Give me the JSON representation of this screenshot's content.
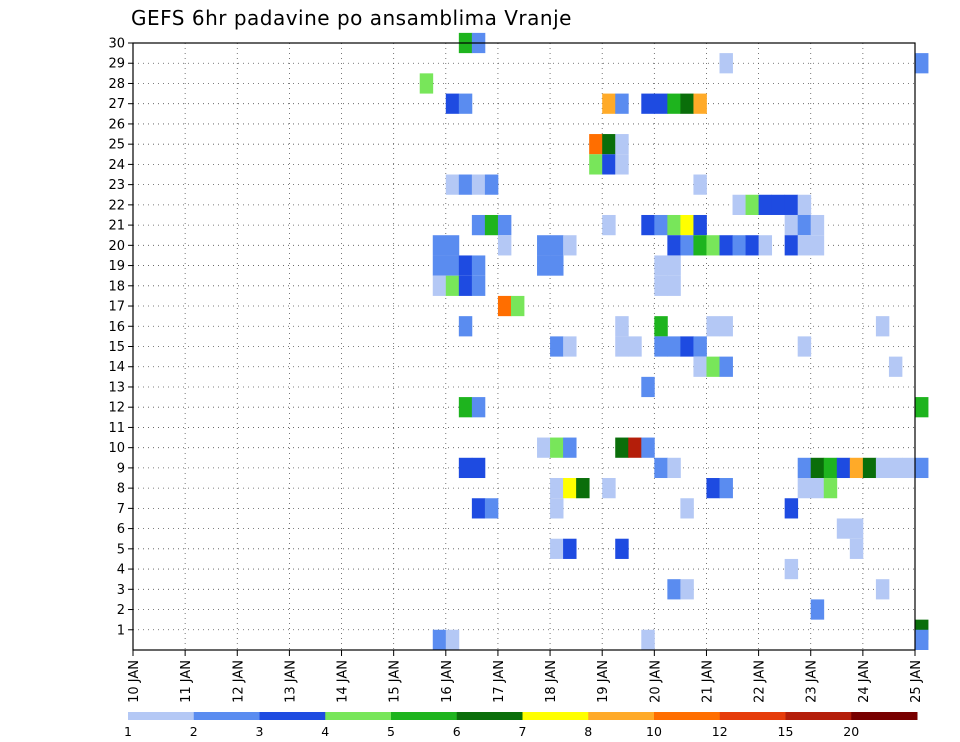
{
  "chart_data": {
    "type": "heatmap",
    "title": "GEFS 6hr padavine po ansamblima Vranje",
    "x_ticks": [
      "10 JAN",
      "11 JAN",
      "12 JAN",
      "13 JAN",
      "14 JAN",
      "15 JAN",
      "16 JAN",
      "17 JAN",
      "18 JAN",
      "19 JAN",
      "20 JAN",
      "21 JAN",
      "22 JAN",
      "23 JAN",
      "24 JAN",
      "25 JAN"
    ],
    "y_ticks": [
      "1",
      "2",
      "3",
      "4",
      "5",
      "6",
      "7",
      "8",
      "9",
      "10",
      "11",
      "12",
      "13",
      "14",
      "15",
      "16",
      "17",
      "18",
      "19",
      "20",
      "21",
      "22",
      "23",
      "24",
      "25",
      "26",
      "27",
      "28",
      "29",
      "30"
    ],
    "xlim_days": [
      10,
      25
    ],
    "ylim": [
      0,
      30
    ],
    "step_hours": 6,
    "grid": true,
    "legend": {
      "labels": [
        "1",
        "2",
        "3",
        "4",
        "5",
        "6",
        "7",
        "8",
        "10",
        "12",
        "15",
        "20"
      ],
      "colors": [
        "#b4c8f5",
        "#5a8cf0",
        "#1e4be1",
        "#78e65a",
        "#1eb41e",
        "#0a6e0a",
        "#ffff00",
        "#ffaa28",
        "#ff6e00",
        "#e63c0a",
        "#b41e0a",
        "#780000"
      ]
    },
    "cells": [
      {
        "member": 30,
        "day": 16.25,
        "level": 5
      },
      {
        "member": 30,
        "day": 16.5,
        "level": 2
      },
      {
        "member": 29,
        "day": 21.25,
        "level": 1
      },
      {
        "member": 29,
        "day": 25.0,
        "level": 2
      },
      {
        "member": 28,
        "day": 15.5,
        "level": 4
      },
      {
        "member": 27,
        "day": 16.0,
        "level": 3
      },
      {
        "member": 27,
        "day": 16.25,
        "level": 2
      },
      {
        "member": 27,
        "day": 19.0,
        "level": 8
      },
      {
        "member": 27,
        "day": 19.25,
        "level": 2
      },
      {
        "member": 27,
        "day": 19.75,
        "level": 3
      },
      {
        "member": 27,
        "day": 20.0,
        "level": 3
      },
      {
        "member": 27,
        "day": 20.25,
        "level": 5
      },
      {
        "member": 27,
        "day": 20.5,
        "level": 6
      },
      {
        "member": 27,
        "day": 20.75,
        "level": 8
      },
      {
        "member": 25,
        "day": 18.75,
        "level": 9
      },
      {
        "member": 25,
        "day": 19.0,
        "level": 6
      },
      {
        "member": 25,
        "day": 19.25,
        "level": 1
      },
      {
        "member": 24,
        "day": 18.75,
        "level": 4
      },
      {
        "member": 24,
        "day": 19.0,
        "level": 3
      },
      {
        "member": 24,
        "day": 19.25,
        "level": 1
      },
      {
        "member": 23,
        "day": 16.0,
        "level": 1
      },
      {
        "member": 23,
        "day": 16.25,
        "level": 2
      },
      {
        "member": 23,
        "day": 16.5,
        "level": 1
      },
      {
        "member": 23,
        "day": 16.75,
        "level": 2
      },
      {
        "member": 23,
        "day": 20.75,
        "level": 1
      },
      {
        "member": 22,
        "day": 21.5,
        "level": 1
      },
      {
        "member": 22,
        "day": 21.75,
        "level": 4
      },
      {
        "member": 22,
        "day": 22.0,
        "level": 3
      },
      {
        "member": 22,
        "day": 22.25,
        "level": 3
      },
      {
        "member": 22,
        "day": 22.5,
        "level": 3
      },
      {
        "member": 22,
        "day": 22.75,
        "level": 1
      },
      {
        "member": 21,
        "day": 16.5,
        "level": 2
      },
      {
        "member": 21,
        "day": 16.75,
        "level": 5
      },
      {
        "member": 21,
        "day": 17.0,
        "level": 2
      },
      {
        "member": 21,
        "day": 19.0,
        "level": 1
      },
      {
        "member": 21,
        "day": 19.75,
        "level": 3
      },
      {
        "member": 21,
        "day": 20.0,
        "level": 2
      },
      {
        "member": 21,
        "day": 20.25,
        "level": 4
      },
      {
        "member": 21,
        "day": 20.5,
        "level": 7
      },
      {
        "member": 21,
        "day": 20.75,
        "level": 3
      },
      {
        "member": 21,
        "day": 22.5,
        "level": 1
      },
      {
        "member": 21,
        "day": 22.75,
        "level": 2
      },
      {
        "member": 21,
        "day": 23.0,
        "level": 1
      },
      {
        "member": 20,
        "day": 15.75,
        "level": 2
      },
      {
        "member": 20,
        "day": 16.0,
        "level": 2
      },
      {
        "member": 20,
        "day": 17.0,
        "level": 1
      },
      {
        "member": 20,
        "day": 17.75,
        "level": 2
      },
      {
        "member": 20,
        "day": 18.0,
        "level": 2
      },
      {
        "member": 20,
        "day": 18.25,
        "level": 1
      },
      {
        "member": 20,
        "day": 20.25,
        "level": 3
      },
      {
        "member": 20,
        "day": 20.5,
        "level": 2
      },
      {
        "member": 20,
        "day": 20.75,
        "level": 5
      },
      {
        "member": 20,
        "day": 21.0,
        "level": 4
      },
      {
        "member": 20,
        "day": 21.25,
        "level": 3
      },
      {
        "member": 20,
        "day": 21.5,
        "level": 2
      },
      {
        "member": 20,
        "day": 21.75,
        "level": 3
      },
      {
        "member": 20,
        "day": 22.0,
        "level": 1
      },
      {
        "member": 20,
        "day": 22.5,
        "level": 3
      },
      {
        "member": 20,
        "day": 22.75,
        "level": 1
      },
      {
        "member": 20,
        "day": 23.0,
        "level": 1
      },
      {
        "member": 19,
        "day": 15.75,
        "level": 2
      },
      {
        "member": 19,
        "day": 16.0,
        "level": 2
      },
      {
        "member": 19,
        "day": 16.25,
        "level": 3
      },
      {
        "member": 19,
        "day": 16.5,
        "level": 2
      },
      {
        "member": 19,
        "day": 17.75,
        "level": 2
      },
      {
        "member": 19,
        "day": 18.0,
        "level": 2
      },
      {
        "member": 19,
        "day": 20.0,
        "level": 1
      },
      {
        "member": 19,
        "day": 20.25,
        "level": 1
      },
      {
        "member": 18,
        "day": 15.75,
        "level": 1
      },
      {
        "member": 18,
        "day": 16.0,
        "level": 4
      },
      {
        "member": 18,
        "day": 16.25,
        "level": 3
      },
      {
        "member": 18,
        "day": 16.5,
        "level": 2
      },
      {
        "member": 18,
        "day": 20.0,
        "level": 1
      },
      {
        "member": 18,
        "day": 20.25,
        "level": 1
      },
      {
        "member": 17,
        "day": 17.0,
        "level": 9
      },
      {
        "member": 17,
        "day": 17.25,
        "level": 4
      },
      {
        "member": 16,
        "day": 16.25,
        "level": 2
      },
      {
        "member": 16,
        "day": 19.25,
        "level": 1
      },
      {
        "member": 16,
        "day": 20.0,
        "level": 5
      },
      {
        "member": 16,
        "day": 21.0,
        "level": 1
      },
      {
        "member": 16,
        "day": 21.25,
        "level": 1
      },
      {
        "member": 16,
        "day": 24.25,
        "level": 1
      },
      {
        "member": 15,
        "day": 18.0,
        "level": 2
      },
      {
        "member": 15,
        "day": 18.25,
        "level": 1
      },
      {
        "member": 15,
        "day": 19.25,
        "level": 1
      },
      {
        "member": 15,
        "day": 19.5,
        "level": 1
      },
      {
        "member": 15,
        "day": 20.0,
        "level": 2
      },
      {
        "member": 15,
        "day": 20.25,
        "level": 2
      },
      {
        "member": 15,
        "day": 20.5,
        "level": 3
      },
      {
        "member": 15,
        "day": 20.75,
        "level": 2
      },
      {
        "member": 15,
        "day": 22.75,
        "level": 1
      },
      {
        "member": 14,
        "day": 20.75,
        "level": 1
      },
      {
        "member": 14,
        "day": 21.0,
        "level": 4
      },
      {
        "member": 14,
        "day": 21.25,
        "level": 2
      },
      {
        "member": 14,
        "day": 24.5,
        "level": 1
      },
      {
        "member": 13,
        "day": 19.75,
        "level": 2
      },
      {
        "member": 12,
        "day": 16.25,
        "level": 5
      },
      {
        "member": 12,
        "day": 16.5,
        "level": 2
      },
      {
        "member": 12,
        "day": 25.0,
        "level": 5
      },
      {
        "member": 10,
        "day": 17.75,
        "level": 1
      },
      {
        "member": 10,
        "day": 18.0,
        "level": 4
      },
      {
        "member": 10,
        "day": 18.25,
        "level": 2
      },
      {
        "member": 10,
        "day": 19.25,
        "level": 6
      },
      {
        "member": 10,
        "day": 19.5,
        "level": 11
      },
      {
        "member": 10,
        "day": 19.75,
        "level": 2
      },
      {
        "member": 9,
        "day": 16.25,
        "level": 3
      },
      {
        "member": 9,
        "day": 16.5,
        "level": 3
      },
      {
        "member": 9,
        "day": 20.0,
        "level": 2
      },
      {
        "member": 9,
        "day": 20.25,
        "level": 1
      },
      {
        "member": 9,
        "day": 22.75,
        "level": 2
      },
      {
        "member": 9,
        "day": 23.0,
        "level": 6
      },
      {
        "member": 9,
        "day": 23.25,
        "level": 5
      },
      {
        "member": 9,
        "day": 23.5,
        "level": 3
      },
      {
        "member": 9,
        "day": 23.75,
        "level": 8
      },
      {
        "member": 9,
        "day": 24.0,
        "level": 6
      },
      {
        "member": 9,
        "day": 24.25,
        "level": 1
      },
      {
        "member": 9,
        "day": 24.5,
        "level": 1
      },
      {
        "member": 9,
        "day": 24.75,
        "level": 1
      },
      {
        "member": 9,
        "day": 25.0,
        "level": 2
      },
      {
        "member": 8,
        "day": 18.0,
        "level": 1
      },
      {
        "member": 8,
        "day": 18.25,
        "level": 7
      },
      {
        "member": 8,
        "day": 18.5,
        "level": 6
      },
      {
        "member": 8,
        "day": 19.0,
        "level": 1
      },
      {
        "member": 8,
        "day": 21.0,
        "level": 3
      },
      {
        "member": 8,
        "day": 21.25,
        "level": 2
      },
      {
        "member": 8,
        "day": 22.75,
        "level": 1
      },
      {
        "member": 8,
        "day": 23.0,
        "level": 1
      },
      {
        "member": 8,
        "day": 23.25,
        "level": 4
      },
      {
        "member": 7,
        "day": 16.5,
        "level": 3
      },
      {
        "member": 7,
        "day": 16.75,
        "level": 2
      },
      {
        "member": 7,
        "day": 18.0,
        "level": 1
      },
      {
        "member": 7,
        "day": 20.5,
        "level": 1
      },
      {
        "member": 7,
        "day": 22.5,
        "level": 3
      },
      {
        "member": 6,
        "day": 23.5,
        "level": 1
      },
      {
        "member": 6,
        "day": 23.75,
        "level": 1
      },
      {
        "member": 5,
        "day": 18.0,
        "level": 1
      },
      {
        "member": 5,
        "day": 18.25,
        "level": 3
      },
      {
        "member": 5,
        "day": 19.25,
        "level": 3
      },
      {
        "member": 5,
        "day": 23.75,
        "level": 1
      },
      {
        "member": 4,
        "day": 22.5,
        "level": 1
      },
      {
        "member": 3,
        "day": 20.25,
        "level": 2
      },
      {
        "member": 3,
        "day": 20.5,
        "level": 1
      },
      {
        "member": 3,
        "day": 24.25,
        "level": 1
      },
      {
        "member": 2,
        "day": 23.0,
        "level": 2
      },
      {
        "member": 1,
        "day": 25.0,
        "level": 6
      },
      {
        "member": 0.5,
        "day": 15.75,
        "level": 2
      },
      {
        "member": 0.5,
        "day": 16.0,
        "level": 1
      },
      {
        "member": 0.5,
        "day": 19.75,
        "level": 1
      },
      {
        "member": 0.5,
        "day": 25.0,
        "level": 2
      }
    ]
  }
}
